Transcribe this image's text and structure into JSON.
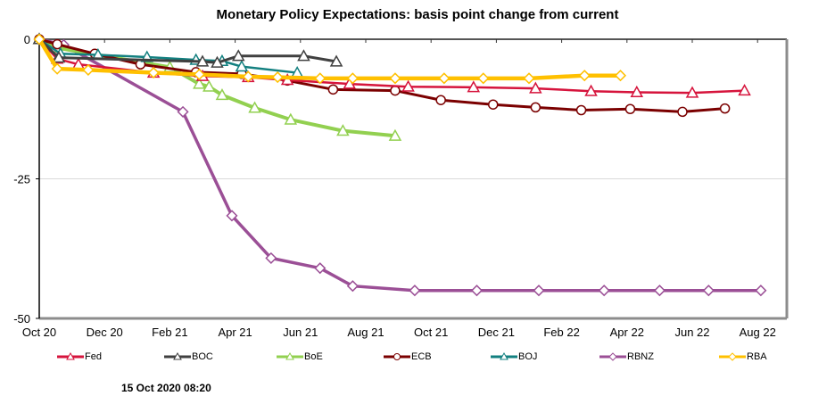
{
  "chart_data": {
    "type": "line",
    "title": "Monetary Policy Expectations: basis point change from current",
    "xlabel": "",
    "ylabel": "",
    "x_unit": "months since Oct 2020",
    "xlim": [
      0,
      23
    ],
    "ylim": [
      -50,
      0
    ],
    "yticks": [
      0,
      -25,
      -50
    ],
    "ytick_labels": [
      "0",
      "-25",
      "-50"
    ],
    "xticks": [
      0,
      2,
      4,
      6,
      8,
      10,
      12,
      14,
      16,
      18,
      20,
      22
    ],
    "xtick_labels": [
      "Oct 20",
      "Dec 20",
      "Feb 21",
      "Apr 21",
      "Jun 21",
      "Aug 21",
      "Oct 21",
      "Dec 21",
      "Feb 22",
      "Apr 22",
      "Jun 22",
      "Aug 22"
    ],
    "grid": "horizontal at -25",
    "legend_position": "bottom",
    "series": [
      {
        "name": "Fed",
        "color": "#d6143c",
        "marker": "triangle",
        "x": [
          0,
          0.55,
          1.2,
          3.5,
          5.0,
          6.4,
          7.6,
          9.5,
          11.3,
          13.3,
          15.2,
          16.9,
          18.3,
          20.0,
          21.6
        ],
        "y": [
          0,
          -3.5,
          -4.5,
          -6.0,
          -6.6,
          -6.8,
          -7.3,
          -8.0,
          -8.5,
          -8.6,
          -8.8,
          -9.3,
          -9.5,
          -9.6,
          -9.2
        ]
      },
      {
        "name": "BOC",
        "color": "#404040",
        "marker": "triangle",
        "x": [
          0,
          0.6,
          5.0,
          5.45,
          6.1,
          8.1,
          9.1
        ],
        "y": [
          0,
          -3.3,
          -4.0,
          -4.2,
          -3.0,
          -3.0,
          -4.0
        ]
      },
      {
        "name": "BoE",
        "color": "#92d050",
        "marker": "triangle",
        "x": [
          0,
          0.5,
          4.0,
          4.9,
          5.2,
          5.6,
          6.6,
          7.7,
          9.3,
          10.9
        ],
        "y": [
          0,
          -1.5,
          -5.0,
          -8.0,
          -8.5,
          -10.0,
          -12.3,
          -14.4,
          -16.4,
          -17.3
        ]
      },
      {
        "name": "ECB",
        "color": "#7b0000",
        "marker": "circle",
        "x": [
          0,
          0.55,
          1.7,
          3.1,
          4.8,
          6.2,
          7.6,
          9.0,
          10.9,
          12.3,
          13.9,
          15.2,
          16.6,
          18.1,
          19.7,
          21.0
        ],
        "y": [
          0,
          -0.9,
          -2.6,
          -4.5,
          -5.9,
          -6.2,
          -7.4,
          -9.0,
          -9.2,
          -10.9,
          -11.7,
          -12.2,
          -12.7,
          -12.5,
          -13.0,
          -12.4
        ]
      },
      {
        "name": "BOJ",
        "color": "#138080",
        "marker": "triangle",
        "x": [
          0,
          0.65,
          1.8,
          3.3,
          4.8,
          5.6,
          6.2,
          7.9
        ],
        "y": [
          0,
          -2.6,
          -2.8,
          -3.2,
          -3.7,
          -3.9,
          -4.9,
          -6.0
        ]
      },
      {
        "name": "RBNZ",
        "color": "#9b4f96",
        "marker": "diamond",
        "x": [
          0,
          0.75,
          4.4,
          5.9,
          7.1,
          8.6,
          9.6,
          11.5,
          13.4,
          15.3,
          17.3,
          19.0,
          20.5,
          22.1
        ],
        "y": [
          0,
          -1.0,
          -13.0,
          -31.6,
          -39.2,
          -41.0,
          -44.2,
          -45.0,
          -45.0,
          -45.0,
          -45.0,
          -45.0,
          -45.0,
          -45.0
        ]
      },
      {
        "name": "RBA",
        "color": "#ffc000",
        "marker": "diamond",
        "x": [
          0,
          0.55,
          1.5,
          3.5,
          4.9,
          6.4,
          7.3,
          8.6,
          9.6,
          10.9,
          12.4,
          13.6,
          15.0,
          16.7,
          17.8
        ],
        "y": [
          0,
          -5.3,
          -5.5,
          -6.0,
          -6.3,
          -6.7,
          -6.8,
          -7.0,
          -7.0,
          -7.0,
          -7.0,
          -7.0,
          -7.0,
          -6.5,
          -6.5
        ]
      }
    ]
  },
  "timestamp": "15 Oct 2020 08:20"
}
